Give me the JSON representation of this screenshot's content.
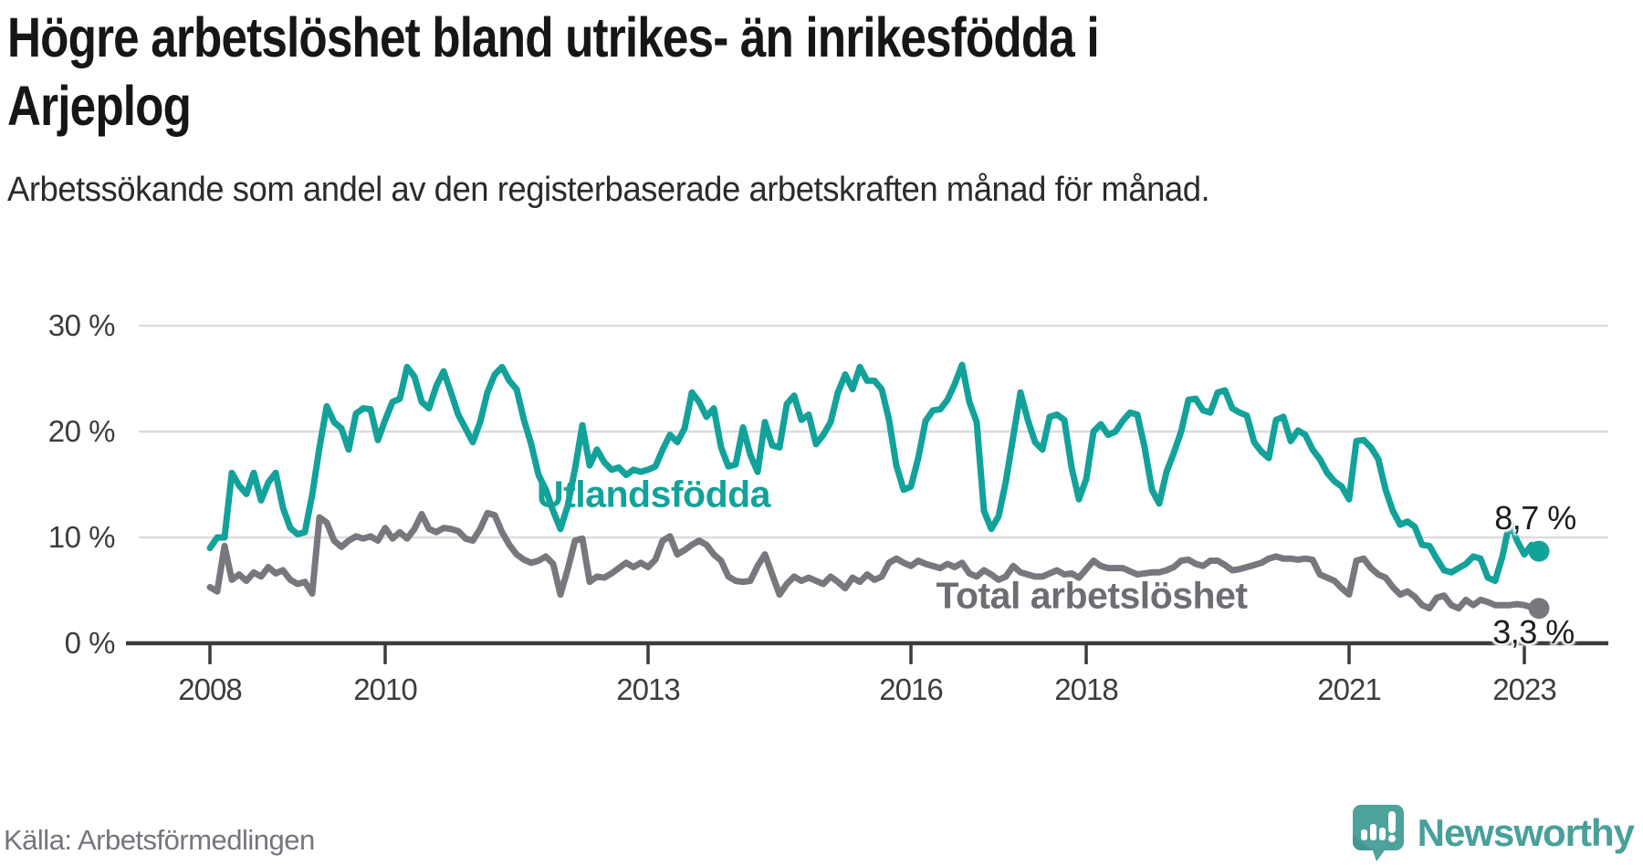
{
  "header": {
    "title": "Högre arbetslöshet bland utrikes- än inrikesfödda i\nArjeplog",
    "subtitle": "Arbetssökande som andel av den registerbaserade arbetskraften månad för månad."
  },
  "chart_data": {
    "type": "line",
    "title": "Högre arbetslöshet bland utrikes- än inrikesfödda i Arjeplog",
    "unit": "percent of registered labour force",
    "frequency": "monthly",
    "x_start": "2008-01",
    "x_end": "2023-03",
    "ylim": [
      0,
      30
    ],
    "grid": "horizontal",
    "y_gridlines": [
      10,
      20,
      30
    ],
    "y_tick_labels": [
      "30 %",
      "20 %",
      "10 %",
      "0 %"
    ],
    "x_tick_labels": [
      "2008",
      "2010",
      "2013",
      "2016",
      "2018",
      "2021",
      "2023"
    ],
    "x_tick_years": [
      2008,
      2010,
      2013,
      2016,
      2018,
      2021,
      2023
    ],
    "series": [
      {
        "name": "Utlandsfödda",
        "color": "#12a29a",
        "end_value": 8.7,
        "end_label": "8,7 %",
        "values": [
          9.0,
          10.0,
          10.0,
          16.1,
          14.9,
          14.1,
          16.1,
          13.5,
          15.2,
          16.1,
          12.8,
          10.9,
          10.3,
          10.5,
          14.0,
          18.5,
          22.4,
          20.9,
          20.3,
          18.3,
          21.7,
          22.2,
          22.1,
          19.2,
          21.1,
          22.8,
          23.1,
          26.1,
          25.2,
          22.8,
          22.2,
          24.3,
          25.7,
          23.7,
          21.6,
          20.3,
          19.0,
          20.9,
          23.7,
          25.4,
          26.1,
          24.8,
          24.0,
          21.1,
          18.8,
          15.9,
          14.5,
          12.5,
          10.8,
          13.0,
          16.5,
          20.6,
          16.8,
          18.3,
          17.1,
          16.4,
          16.6,
          15.9,
          16.4,
          16.2,
          16.4,
          16.7,
          18.3,
          19.7,
          19.0,
          20.3,
          23.7,
          22.8,
          21.4,
          22.2,
          18.5,
          16.7,
          16.9,
          20.4,
          17.8,
          16.2,
          20.9,
          18.7,
          18.5,
          22.6,
          23.4,
          21.1,
          21.6,
          18.8,
          19.7,
          20.9,
          23.7,
          25.4,
          24.0,
          26.1,
          24.8,
          24.8,
          24.0,
          21.1,
          16.8,
          14.5,
          14.8,
          17.5,
          21.0,
          22.0,
          22.1,
          23.0,
          24.5,
          26.3,
          22.8,
          20.9,
          12.5,
          10.8,
          12.0,
          15.3,
          19.5,
          23.7,
          21.1,
          19.0,
          18.3,
          21.4,
          21.6,
          21.1,
          16.6,
          13.6,
          15.5,
          20.0,
          20.7,
          19.7,
          20.0,
          21.0,
          21.8,
          21.6,
          18.5,
          14.5,
          13.2,
          16.2,
          18.0,
          20.0,
          23.0,
          23.1,
          22.0,
          21.8,
          23.7,
          23.9,
          22.2,
          21.8,
          21.5,
          19.0,
          18.1,
          17.5,
          21.1,
          21.4,
          19.1,
          20.1,
          19.7,
          18.3,
          17.4,
          16.1,
          15.3,
          14.8,
          13.6,
          19.1,
          19.2,
          18.5,
          17.4,
          14.5,
          12.5,
          11.2,
          11.5,
          11.0,
          9.3,
          9.2,
          8.0,
          6.9,
          6.7,
          7.1,
          7.5,
          8.2,
          8.0,
          6.2,
          5.9,
          8.2,
          11.5,
          9.7,
          8.4,
          9.3,
          8.7
        ]
      },
      {
        "name": "Total arbetslöshet",
        "color": "#77777d",
        "end_value": 3.3,
        "end_label": "3,3 %",
        "values": [
          5.3,
          4.9,
          9.2,
          6.0,
          6.5,
          5.9,
          6.7,
          6.3,
          7.2,
          6.6,
          6.9,
          6.0,
          5.6,
          5.8,
          4.7,
          11.9,
          11.4,
          9.7,
          9.1,
          9.7,
          10.1,
          9.9,
          10.1,
          9.7,
          10.9,
          9.9,
          10.5,
          9.9,
          10.8,
          12.2,
          10.8,
          10.5,
          10.9,
          10.8,
          10.6,
          9.9,
          9.7,
          10.8,
          12.3,
          12.1,
          10.5,
          9.3,
          8.4,
          7.9,
          7.6,
          7.8,
          8.2,
          7.5,
          4.6,
          7.0,
          9.7,
          9.9,
          5.8,
          6.3,
          6.2,
          6.6,
          7.1,
          7.6,
          7.2,
          7.6,
          7.2,
          7.9,
          9.7,
          10.1,
          8.4,
          8.8,
          9.3,
          9.7,
          9.3,
          8.4,
          7.8,
          6.3,
          5.9,
          5.8,
          5.9,
          7.3,
          8.4,
          6.5,
          4.6,
          5.6,
          6.3,
          5.9,
          6.2,
          5.9,
          5.6,
          6.3,
          5.8,
          5.2,
          6.2,
          5.8,
          6.5,
          6.0,
          6.3,
          7.6,
          8.0,
          7.6,
          7.3,
          7.8,
          7.5,
          7.3,
          7.1,
          7.5,
          7.2,
          7.6,
          6.6,
          6.3,
          6.9,
          6.5,
          6.0,
          6.3,
          7.3,
          6.7,
          6.5,
          6.3,
          6.3,
          6.6,
          6.9,
          6.5,
          6.6,
          6.2,
          7.0,
          7.8,
          7.3,
          7.1,
          7.1,
          7.1,
          6.8,
          6.5,
          6.6,
          6.7,
          6.7,
          6.9,
          7.2,
          7.8,
          7.9,
          7.5,
          7.3,
          7.8,
          7.8,
          7.4,
          6.9,
          7.0,
          7.2,
          7.4,
          7.6,
          8.0,
          8.2,
          8.0,
          8.0,
          7.9,
          8.0,
          7.9,
          6.5,
          6.2,
          5.9,
          5.2,
          4.6,
          7.8,
          8.0,
          7.1,
          6.5,
          6.2,
          5.3,
          4.6,
          4.9,
          4.4,
          3.6,
          3.3,
          4.3,
          4.5,
          3.6,
          3.3,
          4.1,
          3.6,
          4.1,
          3.9,
          3.6,
          3.6,
          3.6,
          3.7,
          3.6,
          3.4,
          3.3
        ]
      }
    ]
  },
  "colors": {
    "accent_teal": "#12a29a",
    "line_gray": "#77777d",
    "grid": "#dcdcdc",
    "axis": "#3b3b3b",
    "brand_teal": "#47a09a"
  },
  "footer": {
    "source": "Källa: Arbetsförmedlingen",
    "brand": "Newsworthy",
    "logo_icon": "bar-chart-speech-pin-icon"
  }
}
